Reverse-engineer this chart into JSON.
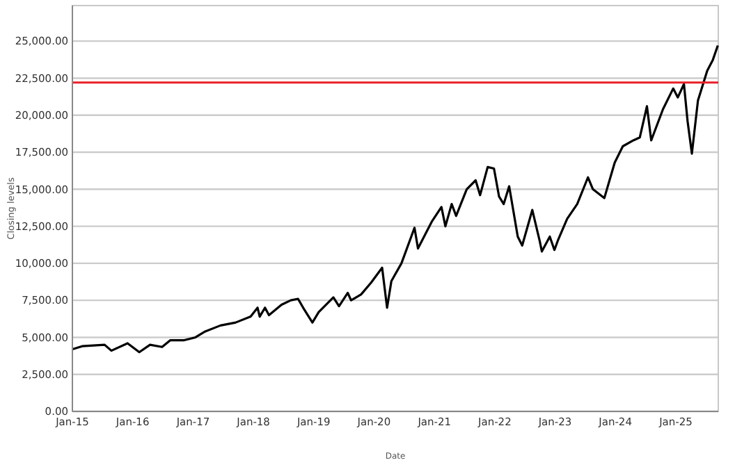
{
  "chart_data": {
    "type": "line",
    "xlabel": "Date",
    "ylabel": "Closing levels",
    "x": [
      "2015-01-02",
      "2015-03-01",
      "2015-07-15",
      "2015-08-25",
      "2015-12-01",
      "2016-02-10",
      "2016-04-15",
      "2016-06-27",
      "2016-08-15",
      "2016-11-04",
      "2017-01-15",
      "2017-03-15",
      "2017-06-15",
      "2017-09-15",
      "2017-12-15",
      "2018-01-26",
      "2018-02-08",
      "2018-03-12",
      "2018-04-05",
      "2018-06-20",
      "2018-08-15",
      "2018-09-28",
      "2018-10-29",
      "2018-12-24",
      "2019-01-31",
      "2019-04-30",
      "2019-06-03",
      "2019-07-26",
      "2019-08-15",
      "2019-10-15",
      "2019-12-15",
      "2020-02-19",
      "2020-03-20",
      "2020-04-15",
      "2020-06-15",
      "2020-09-02",
      "2020-09-23",
      "2020-12-15",
      "2021-02-12",
      "2021-03-08",
      "2021-04-15",
      "2021-05-12",
      "2021-07-15",
      "2021-09-07",
      "2021-10-04",
      "2021-11-19",
      "2021-12-27",
      "2022-01-27",
      "2022-02-24",
      "2022-03-29",
      "2022-05-20",
      "2022-06-16",
      "2022-08-16",
      "2022-09-30",
      "2022-10-13",
      "2022-11-30",
      "2022-12-28",
      "2023-01-20",
      "2023-03-15",
      "2023-05-15",
      "2023-07-19",
      "2023-08-18",
      "2023-10-26",
      "2023-12-28",
      "2024-02-15",
      "2024-04-19",
      "2024-05-28",
      "2024-07-10",
      "2024-08-05",
      "2024-10-15",
      "2024-12-16",
      "2025-01-13",
      "2025-02-19",
      "2025-03-13",
      "2025-04-08",
      "2025-05-15",
      "2025-07-10",
      "2025-08-12",
      "2025-09-12"
    ],
    "series": [
      {
        "color": "#000000",
        "values": [
          4200,
          4400,
          4500,
          4100,
          4600,
          4000,
          4500,
          4350,
          4800,
          4800,
          5000,
          5400,
          5800,
          6000,
          6400,
          7000,
          6400,
          7000,
          6500,
          7200,
          7500,
          7600,
          7000,
          6000,
          6700,
          7700,
          7100,
          8000,
          7500,
          7900,
          8700,
          9700,
          7000,
          8800,
          10000,
          12400,
          11000,
          12800,
          13800,
          12500,
          14000,
          13200,
          15000,
          15600,
          14600,
          16500,
          16400,
          14500,
          14000,
          15200,
          11800,
          11200,
          13600,
          11500,
          10800,
          11800,
          10900,
          11600,
          13000,
          14000,
          15800,
          15000,
          14400,
          16800,
          17900,
          18300,
          18500,
          20600,
          18300,
          20400,
          21800,
          21200,
          22100,
          19600,
          17400,
          21000,
          23000,
          23700,
          24700
        ]
      }
    ],
    "xlim": [
      "2015-01-01",
      "2025-09-15"
    ],
    "xticks": [
      {
        "value": "2015-01-01",
        "label": "Jan-15"
      },
      {
        "value": "2016-01-01",
        "label": "Jan-16"
      },
      {
        "value": "2017-01-01",
        "label": "Jan-17"
      },
      {
        "value": "2018-01-01",
        "label": "Jan-18"
      },
      {
        "value": "2019-01-01",
        "label": "Jan-19"
      },
      {
        "value": "2020-01-01",
        "label": "Jan-20"
      },
      {
        "value": "2021-01-01",
        "label": "Jan-21"
      },
      {
        "value": "2022-01-01",
        "label": "Jan-22"
      },
      {
        "value": "2023-01-01",
        "label": "Jan-23"
      },
      {
        "value": "2024-01-01",
        "label": "Jan-24"
      },
      {
        "value": "2025-01-01",
        "label": "Jan-25"
      }
    ],
    "ylim": [
      0,
      27400
    ],
    "yticks": [
      {
        "value": 0,
        "label": "0.00"
      },
      {
        "value": 2500,
        "label": "2,500.00"
      },
      {
        "value": 5000,
        "label": "5,000.00"
      },
      {
        "value": 7500,
        "label": "7,500.00"
      },
      {
        "value": 10000,
        "label": "10,000.00"
      },
      {
        "value": 12500,
        "label": "12,500.00"
      },
      {
        "value": 15000,
        "label": "15,000.00"
      },
      {
        "value": 17500,
        "label": "17,500.00"
      },
      {
        "value": 20000,
        "label": "20,000.00"
      },
      {
        "value": 22500,
        "label": "22,500.00"
      },
      {
        "value": 25000,
        "label": "25,000.00"
      }
    ],
    "grid": "y",
    "marker": "none",
    "line_style": "solid",
    "ref_lines": [
      {
        "axis": "y",
        "value": 22200,
        "color": "#e8202a"
      }
    ]
  }
}
